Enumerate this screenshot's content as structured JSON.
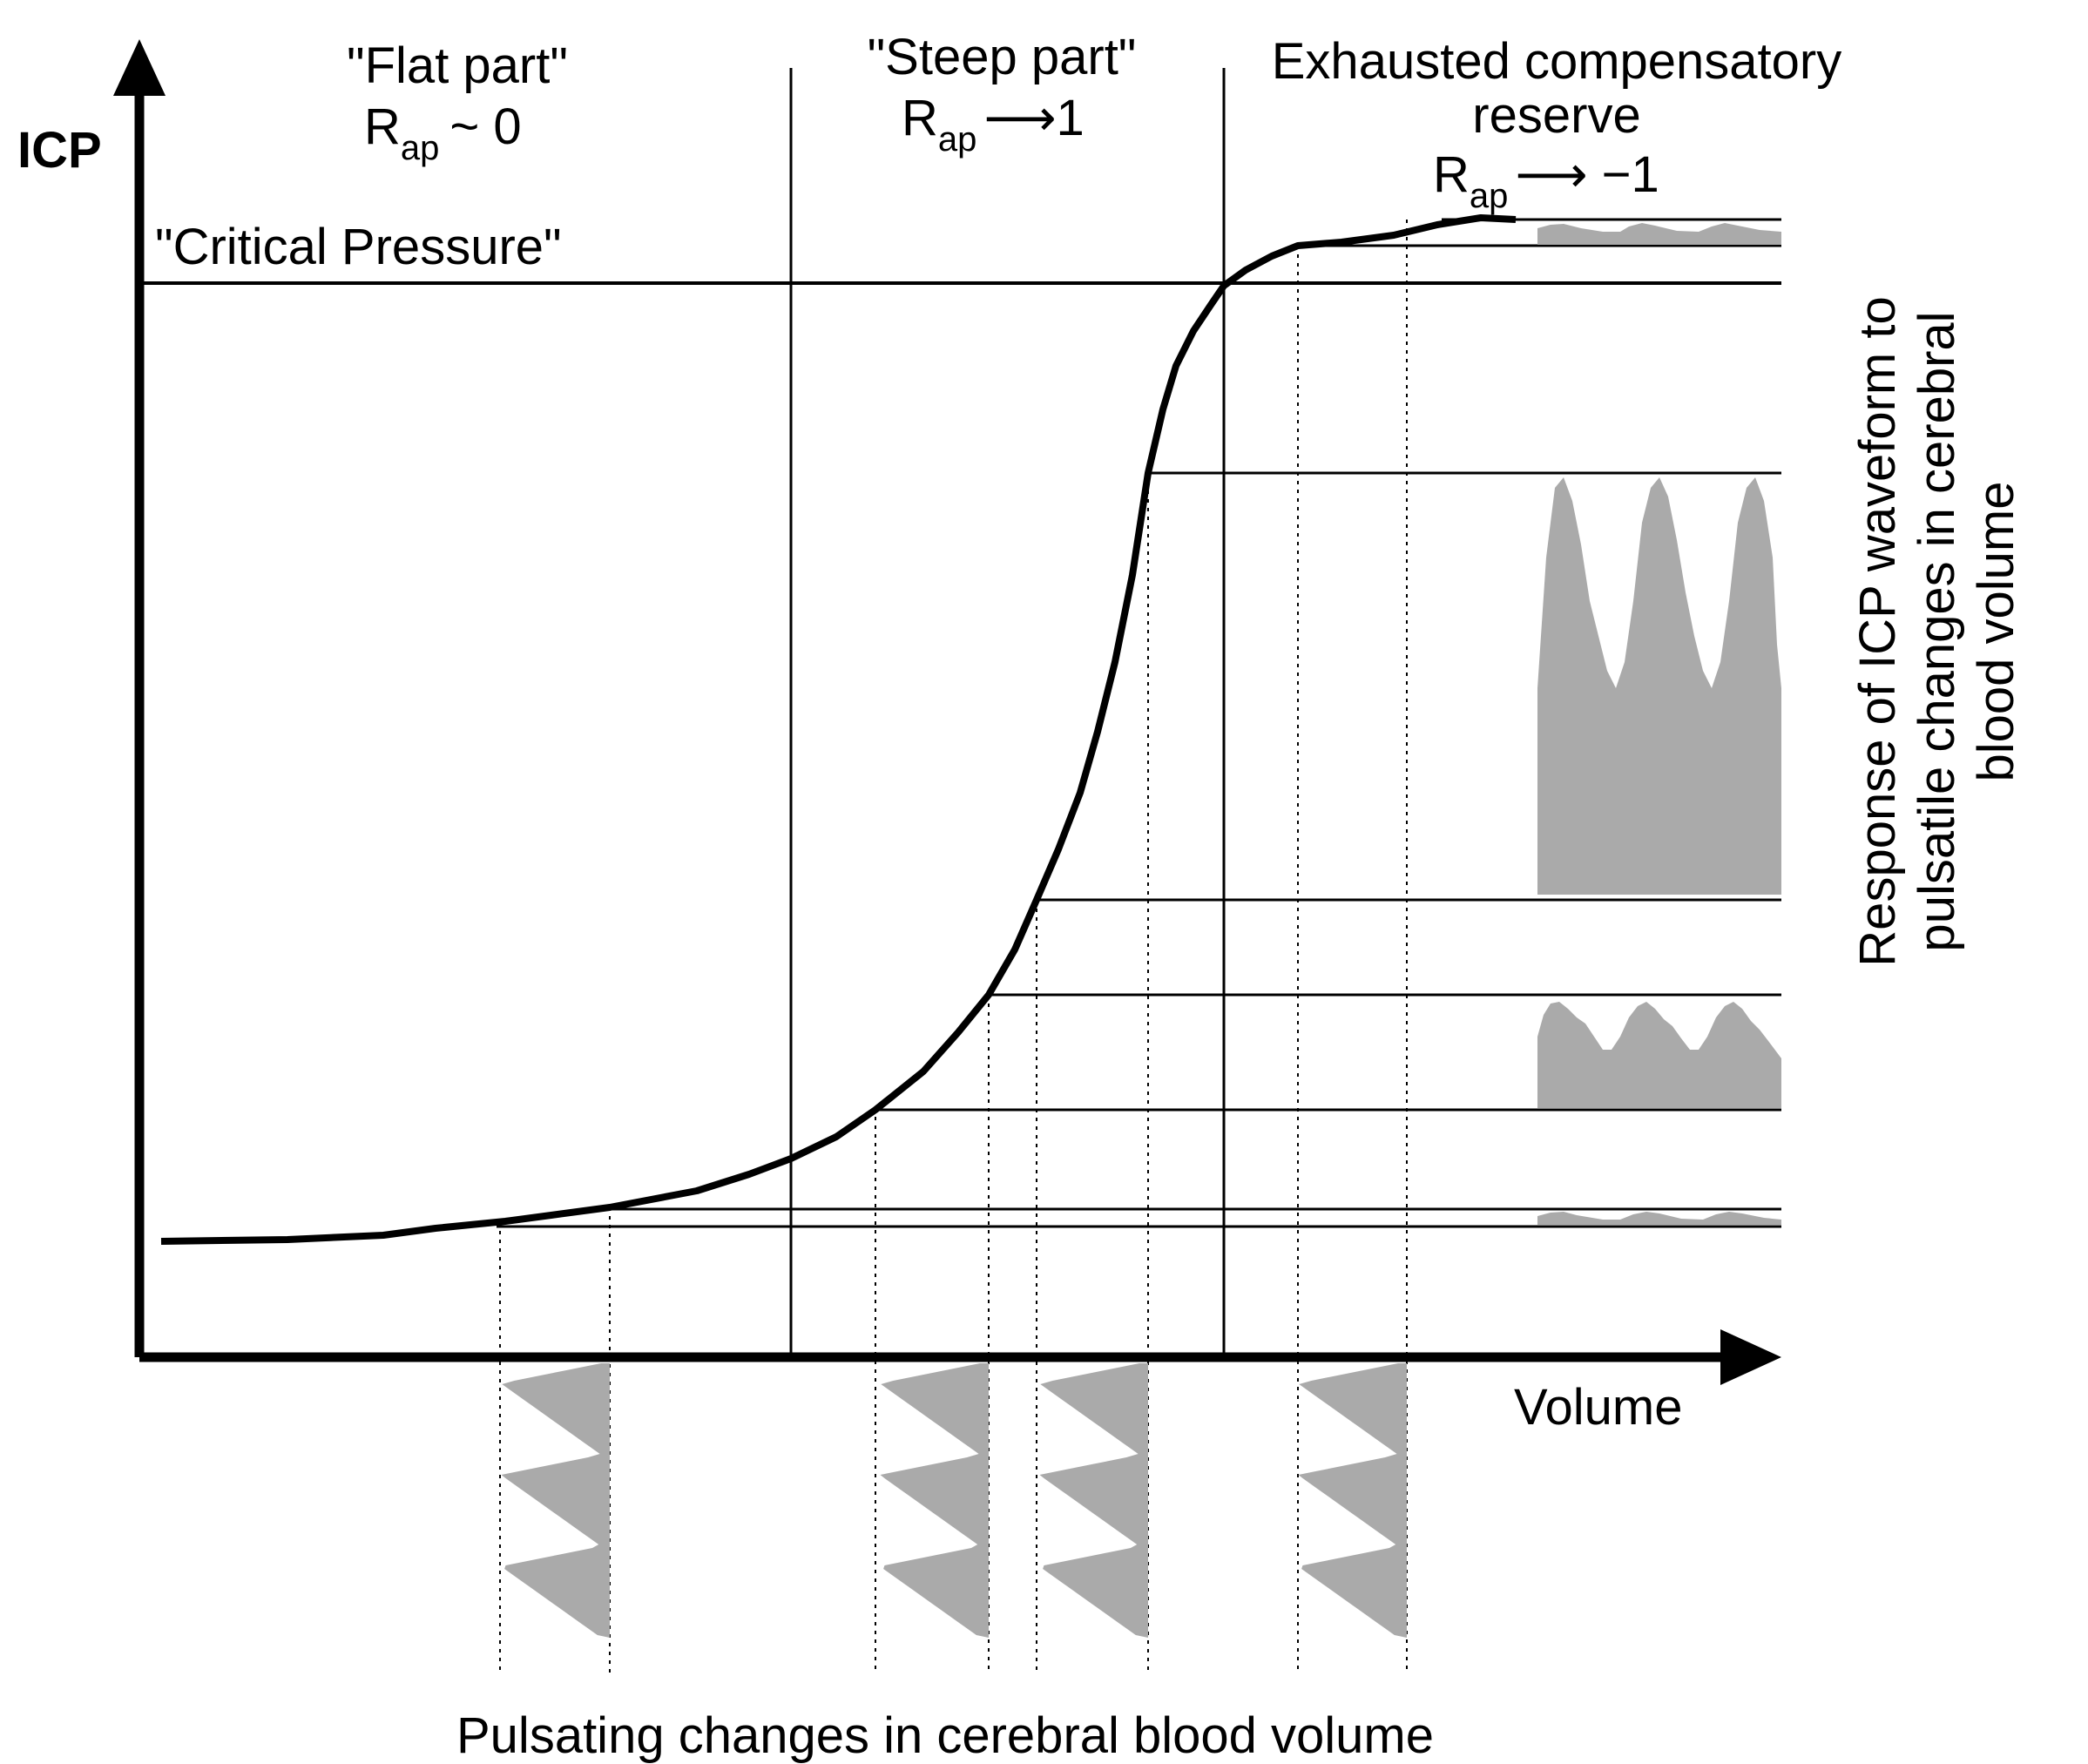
{
  "y_axis_label": "ICP",
  "x_axis_label": "Volume",
  "critical_pressure_label": "\"Critical Pressure\"",
  "zones": {
    "flat": {
      "title": "\"Flat part\"",
      "rap_symbol": "R",
      "rap_subscript": "ap",
      "rap_relation": "~ 0"
    },
    "steep": {
      "title": "\"Steep part\"",
      "rap_symbol": "R",
      "rap_subscript": "ap",
      "rap_relation": "⟶1"
    },
    "exhausted": {
      "title_line1": "Exhausted compensatory",
      "title_line2": "reserve",
      "rap_symbol": "R",
      "rap_subscript": "ap",
      "rap_relation": "⟶ −1"
    }
  },
  "right_caption": [
    "Response of ICP waveform to",
    "pulsatile changes in cerebral",
    "blood volume"
  ],
  "bottom_caption": "Pulsating changes in cerebral blood volume",
  "colors": {
    "curve": "#000000",
    "waveform_fill": "#aaaaaa",
    "lines": "#000000"
  }
}
